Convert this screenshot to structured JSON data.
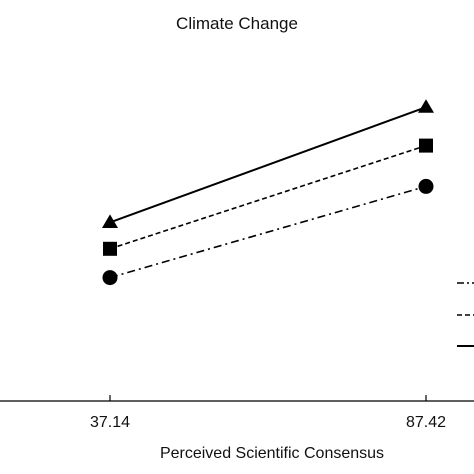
{
  "chart_data": {
    "type": "line",
    "title": "Climate Change",
    "xlabel": "Perceived Scientific Consensus",
    "ylabel": "",
    "x": [
      37.14,
      87.42
    ],
    "x_ticks": [
      "37.14",
      "87.42"
    ],
    "y_axis": "hidden",
    "grid": false,
    "legend": "right, partially cropped (line styles only, labels not visible)",
    "series": [
      {
        "marker": "triangle",
        "line_style": "solid",
        "values": [
          0.74,
          1.22
        ]
      },
      {
        "marker": "square",
        "line_style": "dashed",
        "values": [
          0.63,
          1.06
        ]
      },
      {
        "marker": "circle",
        "line_style": "dash-dot",
        "values": [
          0.51,
          0.89
        ]
      }
    ],
    "colors": {
      "line": "#000000",
      "axis": "#000000",
      "text": "#111111",
      "background": "#ffffff"
    }
  }
}
